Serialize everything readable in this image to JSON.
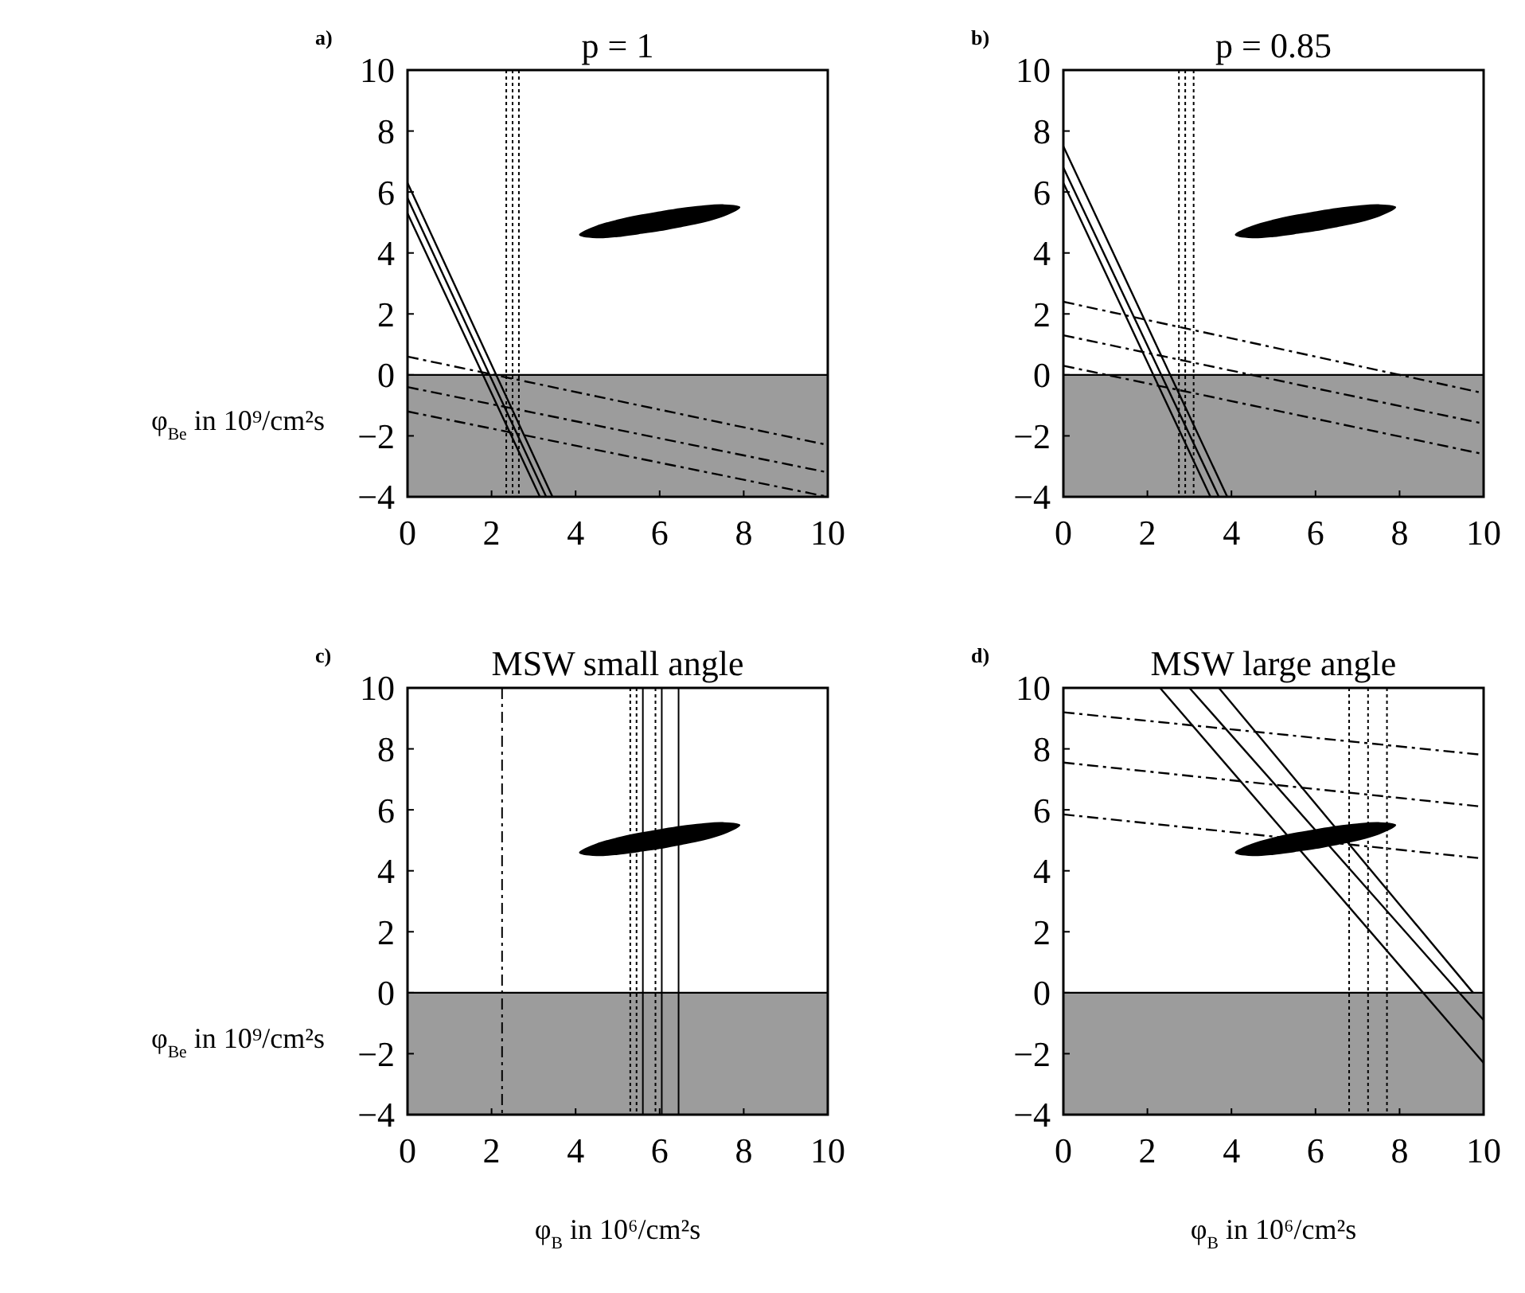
{
  "chart_data": [
    {
      "type": "line",
      "title": "p = 1",
      "ylabel": "φ$_{Be}$ in 10⁹/cm²s",
      "annotations": [
        "a)"
      ],
      "xlim": [
        0,
        10
      ],
      "ylim": [
        -4,
        10
      ],
      "xticks": [
        0,
        2,
        4,
        6,
        8,
        10
      ],
      "yticks": [
        -4,
        -2,
        0,
        2,
        4,
        6,
        8,
        10
      ],
      "bands": [
        {
          "axis": "y",
          "from": -4,
          "to": 0,
          "color": "#9c9c9c"
        }
      ],
      "ref_lines": [
        {
          "axis": "x",
          "value": 2.35,
          "line_style": "dotted"
        },
        {
          "axis": "x",
          "value": 2.5,
          "line_style": "dotted"
        },
        {
          "axis": "x",
          "value": 2.65,
          "line_style": "dotted"
        }
      ],
      "series": [
        {
          "color": "#000000",
          "line_style": "solid",
          "x": [
            0,
            3.45
          ],
          "values": [
            6.3,
            -4
          ]
        },
        {
          "color": "#000000",
          "line_style": "solid",
          "x": [
            0,
            3.3
          ],
          "values": [
            5.8,
            -4
          ]
        },
        {
          "color": "#000000",
          "line_style": "solid",
          "x": [
            0,
            3.15
          ],
          "values": [
            5.3,
            -4
          ]
        },
        {
          "color": "#000000",
          "line_style": "dashed",
          "x": [
            0,
            10
          ],
          "values": [
            0.6,
            -2.3
          ]
        },
        {
          "color": "#000000",
          "line_style": "dashed",
          "x": [
            0,
            10
          ],
          "values": [
            -0.4,
            -3.2
          ]
        },
        {
          "color": "#000000",
          "line_style": "dashed",
          "x": [
            0,
            10
          ],
          "values": [
            -1.2,
            -4
          ]
        },
        {
          "type": "area",
          "color": "#000000",
          "x": [
            4.1,
            4.5,
            5,
            5.5,
            6,
            6.5,
            7,
            7.5,
            7.9,
            7.5,
            7,
            6.5,
            6,
            5.5,
            5,
            4.5
          ],
          "values": [
            4.6,
            4.87,
            5.07,
            5.22,
            5.34,
            5.45,
            5.53,
            5.57,
            5.5,
            5.21,
            5.01,
            4.87,
            4.74,
            4.64,
            4.55,
            4.51
          ]
        }
      ]
    },
    {
      "type": "line",
      "title": "p = 0.85",
      "annotations": [
        "b)"
      ],
      "xlim": [
        0,
        10
      ],
      "ylim": [
        -4,
        10
      ],
      "xticks": [
        0,
        2,
        4,
        6,
        8,
        10
      ],
      "yticks": [
        -4,
        -2,
        0,
        2,
        4,
        6,
        8,
        10
      ],
      "bands": [
        {
          "axis": "y",
          "from": -4,
          "to": 0,
          "color": "#9c9c9c"
        }
      ],
      "ref_lines": [
        {
          "axis": "x",
          "value": 2.75,
          "line_style": "dotted"
        },
        {
          "axis": "x",
          "value": 2.9,
          "line_style": "dotted"
        },
        {
          "axis": "x",
          "value": 3.1,
          "line_style": "dotted"
        }
      ],
      "series": [
        {
          "color": "#000000",
          "line_style": "solid",
          "x": [
            0,
            3.9
          ],
          "values": [
            7.5,
            -4
          ]
        },
        {
          "color": "#000000",
          "line_style": "solid",
          "x": [
            0,
            3.7
          ],
          "values": [
            6.8,
            -4
          ]
        },
        {
          "color": "#000000",
          "line_style": "solid",
          "x": [
            0,
            3.5
          ],
          "values": [
            6.3,
            -4
          ]
        },
        {
          "color": "#000000",
          "line_style": "dashed",
          "x": [
            0,
            10
          ],
          "values": [
            2.4,
            -0.6
          ]
        },
        {
          "color": "#000000",
          "line_style": "dashed",
          "x": [
            0,
            10
          ],
          "values": [
            1.3,
            -1.6
          ]
        },
        {
          "color": "#000000",
          "line_style": "dashed",
          "x": [
            0,
            10
          ],
          "values": [
            0.3,
            -2.6
          ]
        },
        {
          "type": "area",
          "color": "#000000",
          "x": [
            4.1,
            4.5,
            5,
            5.5,
            6,
            6.5,
            7,
            7.5,
            7.9,
            7.5,
            7,
            6.5,
            6,
            5.5,
            5,
            4.5
          ],
          "values": [
            4.6,
            4.87,
            5.07,
            5.22,
            5.34,
            5.45,
            5.53,
            5.57,
            5.5,
            5.21,
            5.01,
            4.87,
            4.74,
            4.64,
            4.55,
            4.51
          ]
        }
      ]
    },
    {
      "type": "area",
      "title": "MSW small angle",
      "xlabel": "φ$_{B}$ in 10⁶/cm²s",
      "ylabel": "φ$_{Be}$ in 10⁹/cm²s",
      "annotations": [
        "c)"
      ],
      "xlim": [
        0,
        10
      ],
      "ylim": [
        -4,
        10
      ],
      "xticks": [
        0,
        2,
        4,
        6,
        8,
        10
      ],
      "yticks": [
        -4,
        -2,
        0,
        2,
        4,
        6,
        8,
        10
      ],
      "bands": [
        {
          "axis": "y",
          "from": -4,
          "to": 0,
          "color": "#9c9c9c"
        }
      ],
      "ref_lines": [
        {
          "axis": "x",
          "value": 2.25,
          "line_style": "dashed"
        },
        {
          "axis": "x",
          "value": 5.3,
          "line_style": "dotted"
        },
        {
          "axis": "x",
          "value": 5.45,
          "line_style": "dotted"
        },
        {
          "axis": "x",
          "value": 5.6,
          "line_style": "solid"
        },
        {
          "axis": "x",
          "value": 5.9,
          "line_style": "dotted"
        },
        {
          "axis": "x",
          "value": 6.05,
          "line_style": "solid"
        },
        {
          "axis": "x",
          "value": 6.45,
          "line_style": "solid"
        }
      ],
      "series": [
        {
          "color": "#000000",
          "x": [
            4.1,
            4.5,
            5,
            5.5,
            6,
            6.5,
            7,
            7.5,
            7.9,
            7.5,
            7,
            6.5,
            6,
            5.5,
            5,
            4.5
          ],
          "values": [
            4.6,
            4.87,
            5.07,
            5.22,
            5.34,
            5.45,
            5.53,
            5.57,
            5.5,
            5.21,
            5.01,
            4.87,
            4.74,
            4.64,
            4.55,
            4.51
          ]
        }
      ]
    },
    {
      "type": "line",
      "title": "MSW large angle",
      "xlabel": "φ$_{B}$ in 10⁶/cm²s",
      "annotations": [
        "d)"
      ],
      "xlim": [
        0,
        10
      ],
      "ylim": [
        -4,
        10
      ],
      "xticks": [
        0,
        2,
        4,
        6,
        8,
        10
      ],
      "yticks": [
        -4,
        -2,
        0,
        2,
        4,
        6,
        8,
        10
      ],
      "bands": [
        {
          "axis": "y",
          "from": -4,
          "to": 0,
          "color": "#9c9c9c"
        }
      ],
      "ref_lines": [
        {
          "axis": "x",
          "value": 6.8,
          "line_style": "dotted"
        },
        {
          "axis": "x",
          "value": 7.25,
          "line_style": "dotted"
        },
        {
          "axis": "x",
          "value": 7.7,
          "line_style": "dotted"
        }
      ],
      "series": [
        {
          "color": "#000000",
          "line_style": "solid",
          "x": [
            2.3,
            10
          ],
          "values": [
            10,
            -2.3
          ]
        },
        {
          "color": "#000000",
          "line_style": "solid",
          "x": [
            3,
            10
          ],
          "values": [
            10,
            -0.9
          ]
        },
        {
          "color": "#000000",
          "line_style": "solid",
          "x": [
            3.7,
            9.75
          ],
          "values": [
            10,
            0
          ]
        },
        {
          "color": "#000000",
          "line_style": "dashed",
          "x": [
            0,
            10
          ],
          "values": [
            9.2,
            7.8
          ]
        },
        {
          "color": "#000000",
          "line_style": "dashed",
          "x": [
            0,
            10
          ],
          "values": [
            7.55,
            6.1
          ]
        },
        {
          "color": "#000000",
          "line_style": "dashed",
          "x": [
            0,
            10
          ],
          "values": [
            5.85,
            4.4
          ]
        },
        {
          "type": "area",
          "color": "#000000",
          "x": [
            4.1,
            4.5,
            5,
            5.5,
            6,
            6.5,
            7,
            7.5,
            7.9,
            7.5,
            7,
            6.5,
            6,
            5.5,
            5,
            4.5
          ],
          "values": [
            4.6,
            4.87,
            5.07,
            5.22,
            5.34,
            5.45,
            5.53,
            5.57,
            5.5,
            5.21,
            5.01,
            4.87,
            4.74,
            4.64,
            4.55,
            4.51
          ]
        }
      ]
    }
  ]
}
